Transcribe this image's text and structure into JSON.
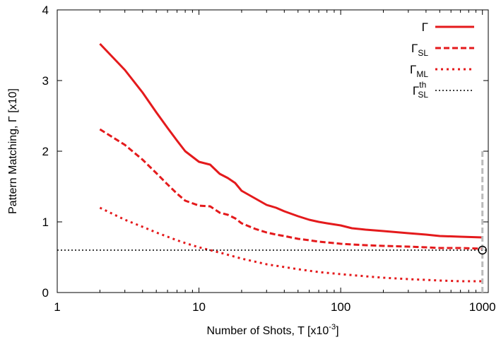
{
  "chart_data": {
    "type": "line",
    "x_scale": "log",
    "xlim": [
      1,
      1100
    ],
    "ylim": [
      0,
      4
    ],
    "grid": false,
    "legend_position": "top-right",
    "x_ticks": [
      1,
      10,
      100,
      1000
    ],
    "x_tick_labels": [
      "1",
      "10",
      "100",
      "1000"
    ],
    "y_ticks": [
      0,
      1,
      2,
      3,
      4
    ],
    "y_tick_labels": [
      "0",
      "1",
      "2",
      "3",
      "4"
    ],
    "xlabel": {
      "main": "Number of Shots, T [x10",
      "sup": "-3",
      "close": "]"
    },
    "ylabel": "Pattern Matching, Γ [x10]",
    "series": [
      {
        "name": {
          "base": "Γ",
          "sub": "",
          "sup": ""
        },
        "color": "#e41a1c",
        "style": "solid",
        "x": [
          2,
          3,
          4,
          5,
          6,
          7,
          8,
          10,
          12,
          14,
          16,
          18,
          20,
          25,
          30,
          35,
          40,
          50,
          60,
          70,
          80,
          100,
          120,
          150,
          200,
          300,
          400,
          500,
          700,
          1000
        ],
        "y": [
          3.52,
          3.15,
          2.83,
          2.55,
          2.33,
          2.15,
          2.0,
          1.85,
          1.81,
          1.68,
          1.62,
          1.55,
          1.44,
          1.33,
          1.24,
          1.2,
          1.15,
          1.08,
          1.03,
          1.0,
          0.98,
          0.95,
          0.91,
          0.89,
          0.87,
          0.84,
          0.82,
          0.8,
          0.79,
          0.78
        ]
      },
      {
        "name": {
          "base": "Γ",
          "sub": "SL",
          "sup": ""
        },
        "color": "#e41a1c",
        "style": "dashed",
        "x": [
          2,
          3,
          4,
          5,
          6,
          7,
          8,
          10,
          12,
          14,
          16,
          18,
          20,
          25,
          30,
          35,
          40,
          50,
          60,
          70,
          80,
          100,
          120,
          150,
          200,
          300,
          400,
          500,
          700,
          1000
        ],
        "y": [
          2.31,
          2.09,
          1.88,
          1.69,
          1.53,
          1.4,
          1.3,
          1.23,
          1.22,
          1.13,
          1.1,
          1.05,
          0.98,
          0.9,
          0.85,
          0.82,
          0.8,
          0.76,
          0.74,
          0.72,
          0.71,
          0.69,
          0.68,
          0.67,
          0.66,
          0.65,
          0.64,
          0.63,
          0.63,
          0.62
        ]
      },
      {
        "name": {
          "base": "Γ",
          "sub": "ML",
          "sup": ""
        },
        "color": "#e41a1c",
        "style": "dotted",
        "x": [
          2,
          3,
          4,
          5,
          6,
          7,
          8,
          10,
          12,
          15,
          20,
          30,
          50,
          70,
          100,
          150,
          200,
          300,
          500,
          700,
          1000
        ],
        "y": [
          1.2,
          1.03,
          0.93,
          0.85,
          0.79,
          0.74,
          0.7,
          0.64,
          0.6,
          0.55,
          0.48,
          0.4,
          0.33,
          0.29,
          0.26,
          0.23,
          0.21,
          0.19,
          0.17,
          0.16,
          0.16
        ]
      },
      {
        "name": {
          "base": "Γ",
          "sub": "SL",
          "sup": "th"
        },
        "color": "#000000",
        "style": "dotted-thin",
        "x": [
          1,
          1100
        ],
        "y": [
          0.6,
          0.6
        ]
      }
    ],
    "annotations": {
      "vertical_line": {
        "x": 1000,
        "y_from": 0,
        "y_to": 2.0,
        "color": "#bbbbbb"
      },
      "circle_marker": {
        "x": 1000,
        "y": 0.6
      }
    }
  }
}
